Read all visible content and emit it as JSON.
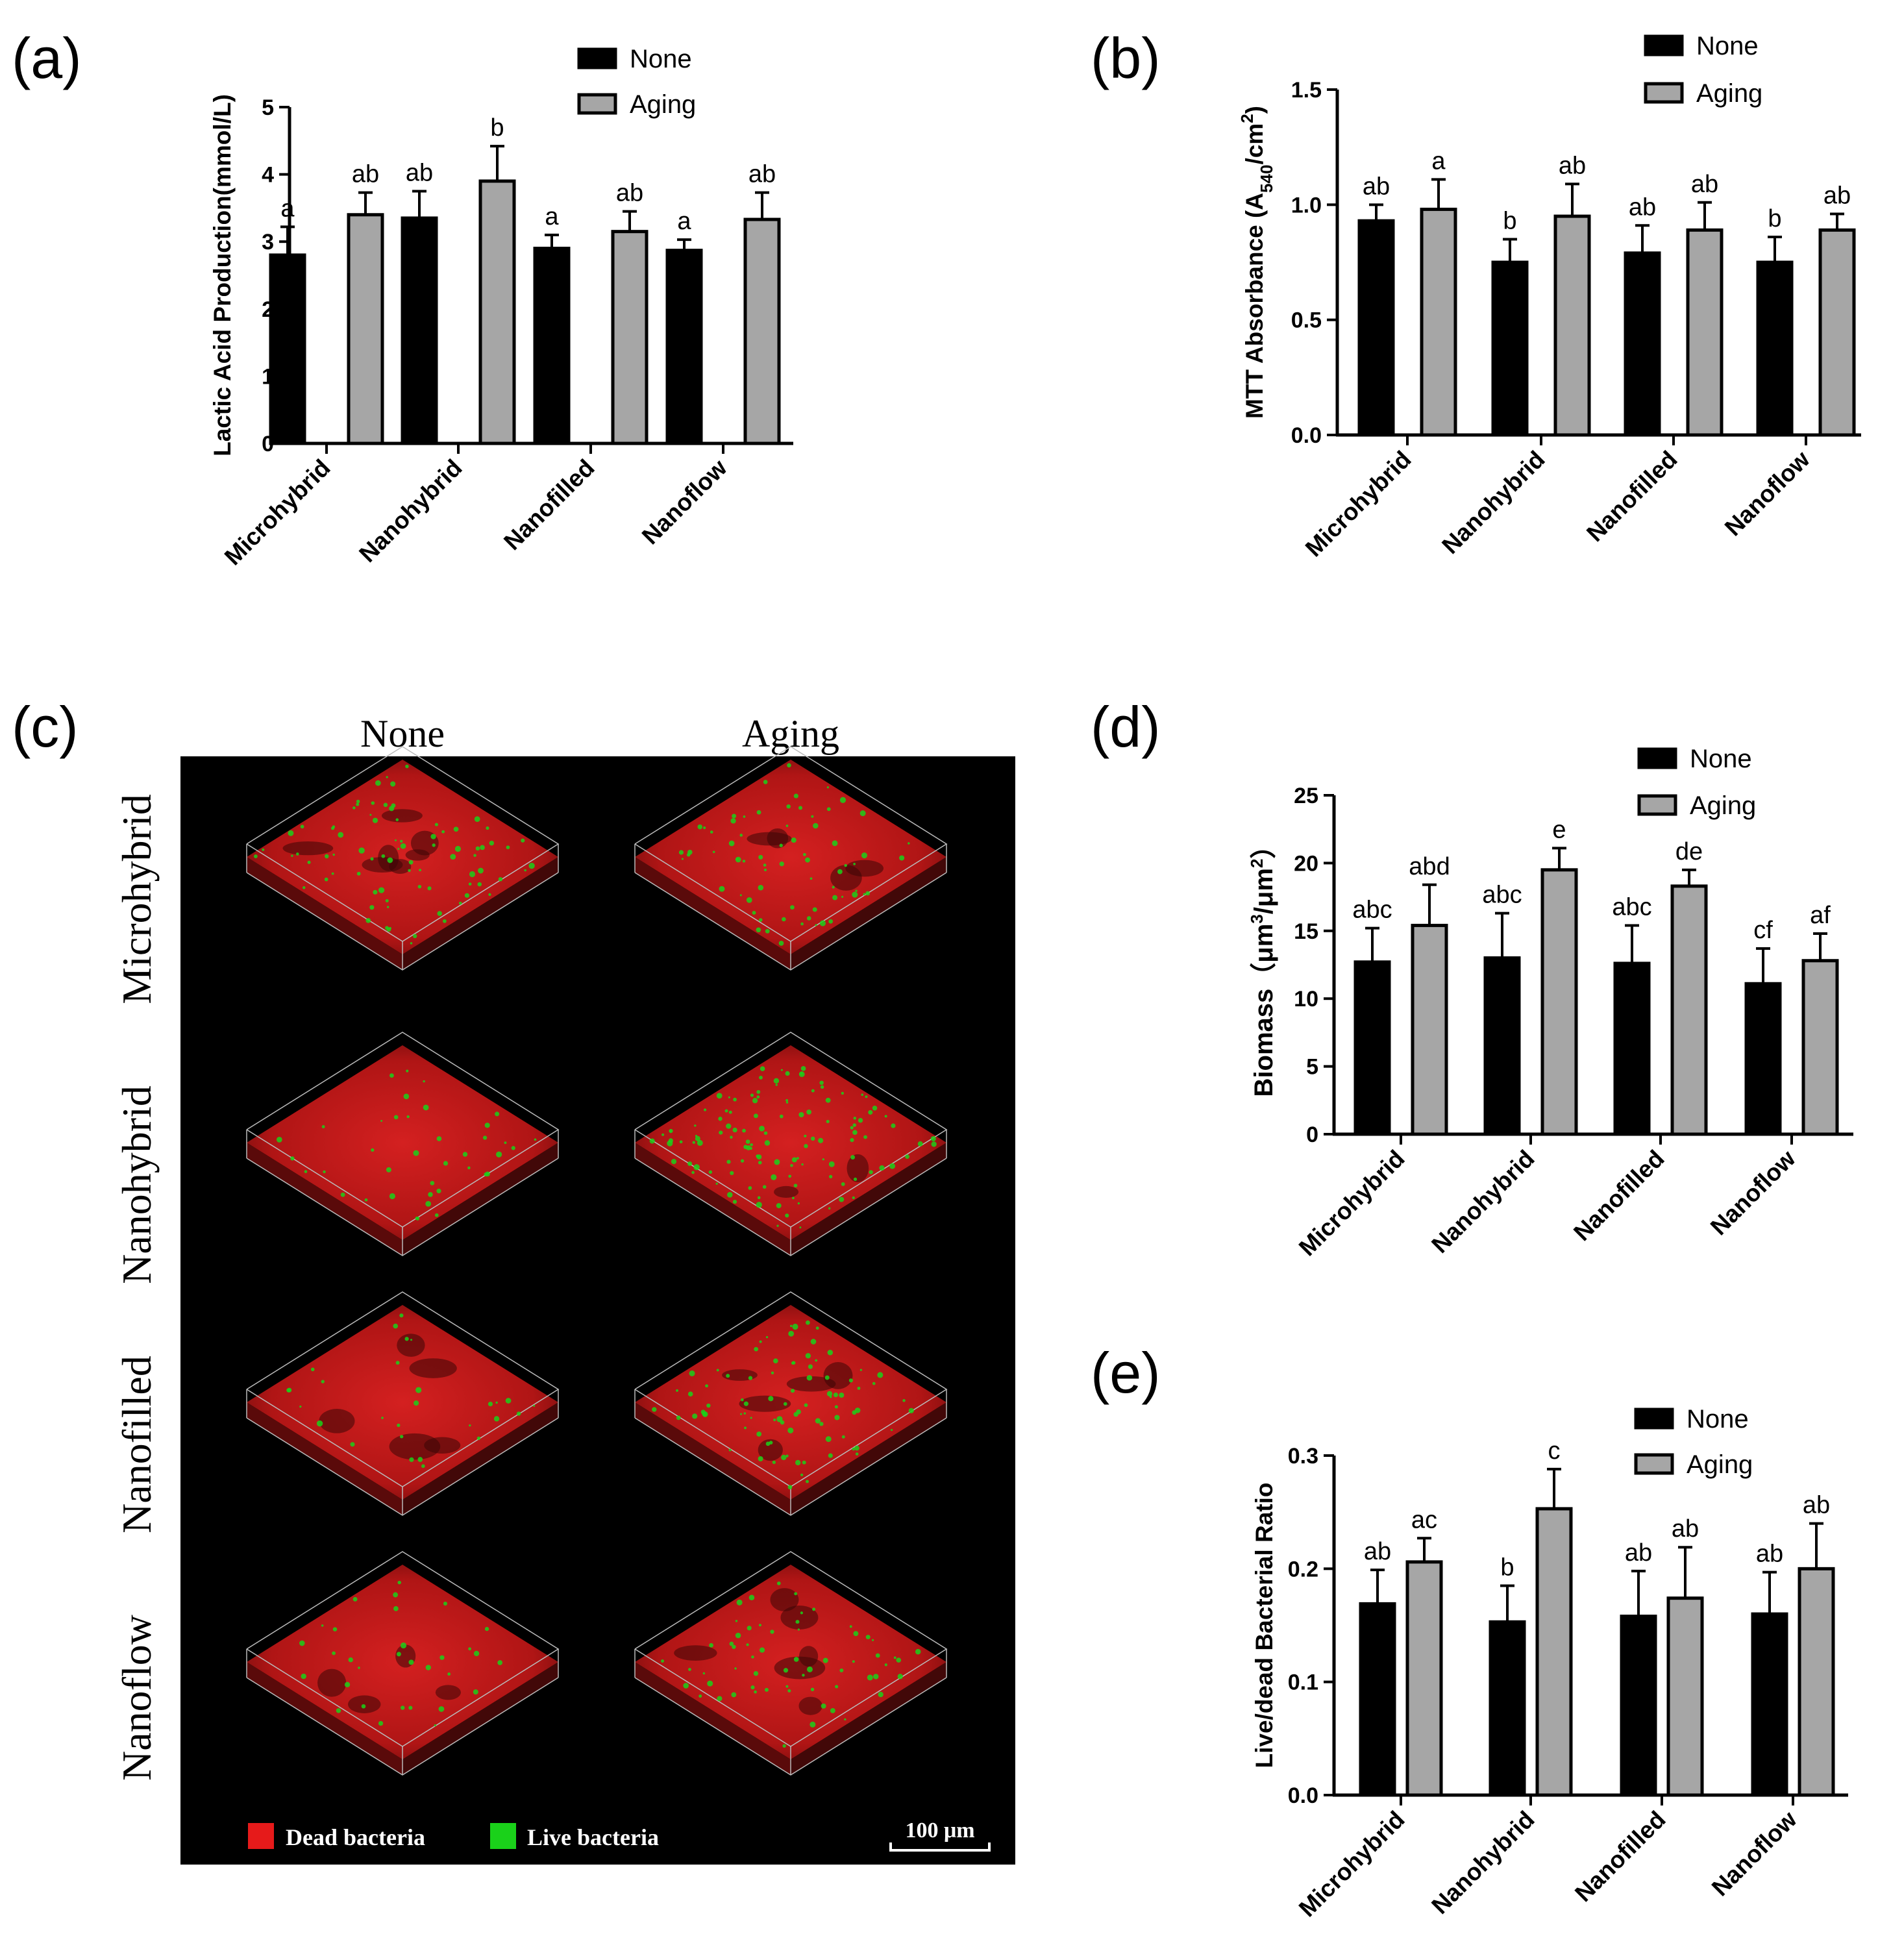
{
  "colors": {
    "none": "#000000",
    "aging": "#a6a6a6",
    "dead": "#e61a1a",
    "live": "#1ad11a",
    "bg": "#000000"
  },
  "panels": {
    "a": {
      "label": "(a)"
    },
    "b": {
      "label": "(b)"
    },
    "c": {
      "label": "(c)",
      "col_headers": [
        "None",
        "Aging"
      ],
      "row_labels": [
        "Microhybrid",
        "Nanohybrid",
        "Nanofilled",
        "Nanoflow"
      ],
      "legend_dead": "Dead bacteria",
      "legend_live": "Live bacteria",
      "scale": "100 μm"
    },
    "d": {
      "label": "(d)"
    },
    "e": {
      "label": "(e)"
    }
  },
  "chart_data": [
    {
      "id": "a",
      "type": "bar",
      "ylabel": "Lactic Acid Production(mmol/L)",
      "categories": [
        "Microhybrid",
        "Nanohybrid",
        "Nanofilled",
        "Nanoflow"
      ],
      "ylim": [
        0,
        5
      ],
      "yticks": [
        "0",
        "1",
        "2",
        "3",
        "4",
        "5"
      ],
      "legend": [
        "None",
        "Aging"
      ],
      "series": [
        {
          "name": "None",
          "values": [
            2.8,
            3.35,
            2.9,
            2.87
          ],
          "errors": [
            0.42,
            0.4,
            0.2,
            0.16
          ],
          "letters": [
            "a",
            "ab",
            "a",
            "a"
          ]
        },
        {
          "name": "Aging",
          "values": [
            3.4,
            3.9,
            3.15,
            3.33
          ],
          "errors": [
            0.33,
            0.52,
            0.3,
            0.4
          ],
          "letters": [
            "ab",
            "b",
            "ab",
            "ab"
          ]
        }
      ]
    },
    {
      "id": "b",
      "type": "bar",
      "ylabel": "MTT Absorbance (A540/cm2)",
      "categories": [
        "Microhybrid",
        "Nanohybrid",
        "Nanofilled",
        "Nanoflow"
      ],
      "ylim": [
        0,
        1.5
      ],
      "yticks": [
        "0.0",
        "0.5",
        "1.0",
        "1.5"
      ],
      "legend": [
        "None",
        "Aging"
      ],
      "series": [
        {
          "name": "None",
          "values": [
            0.93,
            0.75,
            0.79,
            0.75
          ],
          "errors": [
            0.07,
            0.1,
            0.12,
            0.11
          ],
          "letters": [
            "ab",
            "b",
            "ab",
            "b"
          ]
        },
        {
          "name": "Aging",
          "values": [
            0.98,
            0.95,
            0.89,
            0.89
          ],
          "errors": [
            0.13,
            0.14,
            0.12,
            0.07
          ],
          "letters": [
            "a",
            "ab",
            "ab",
            "ab"
          ]
        }
      ]
    },
    {
      "id": "d",
      "type": "bar",
      "ylabel": "Biomass（μm3/μm2）",
      "categories": [
        "Microhybrid",
        "Nanohybrid",
        "Nanofilled",
        "Nanoflow"
      ],
      "ylim": [
        0,
        25
      ],
      "yticks": [
        "0",
        "5",
        "10",
        "15",
        "20",
        "25"
      ],
      "legend": [
        "None",
        "Aging"
      ],
      "series": [
        {
          "name": "None",
          "values": [
            12.7,
            13.0,
            12.6,
            11.1
          ],
          "errors": [
            2.5,
            3.3,
            2.8,
            2.6
          ],
          "letters": [
            "abc",
            "abc",
            "abc",
            "cf"
          ]
        },
        {
          "name": "Aging",
          "values": [
            15.4,
            19.5,
            18.3,
            12.8
          ],
          "errors": [
            3.0,
            1.6,
            1.2,
            2.0
          ],
          "letters": [
            "abd",
            "e",
            "de",
            "af"
          ]
        }
      ]
    },
    {
      "id": "e",
      "type": "bar",
      "ylabel": "Live/dead Bacterial Ratio",
      "categories": [
        "Microhybrid",
        "Nanohybrid",
        "Nanofilled",
        "Nanoflow"
      ],
      "ylim": [
        0,
        0.3
      ],
      "yticks": [
        "0.0",
        "0.1",
        "0.2",
        "0.3"
      ],
      "legend": [
        "None",
        "Aging"
      ],
      "series": [
        {
          "name": "None",
          "values": [
            0.169,
            0.153,
            0.158,
            0.16
          ],
          "errors": [
            0.03,
            0.032,
            0.04,
            0.037
          ],
          "letters": [
            "ab",
            "b",
            "ab",
            "ab"
          ]
        },
        {
          "name": "Aging",
          "values": [
            0.206,
            0.253,
            0.174,
            0.2
          ],
          "errors": [
            0.021,
            0.035,
            0.045,
            0.04
          ],
          "letters": [
            "ac",
            "c",
            "ab",
            "ab"
          ]
        }
      ]
    }
  ]
}
